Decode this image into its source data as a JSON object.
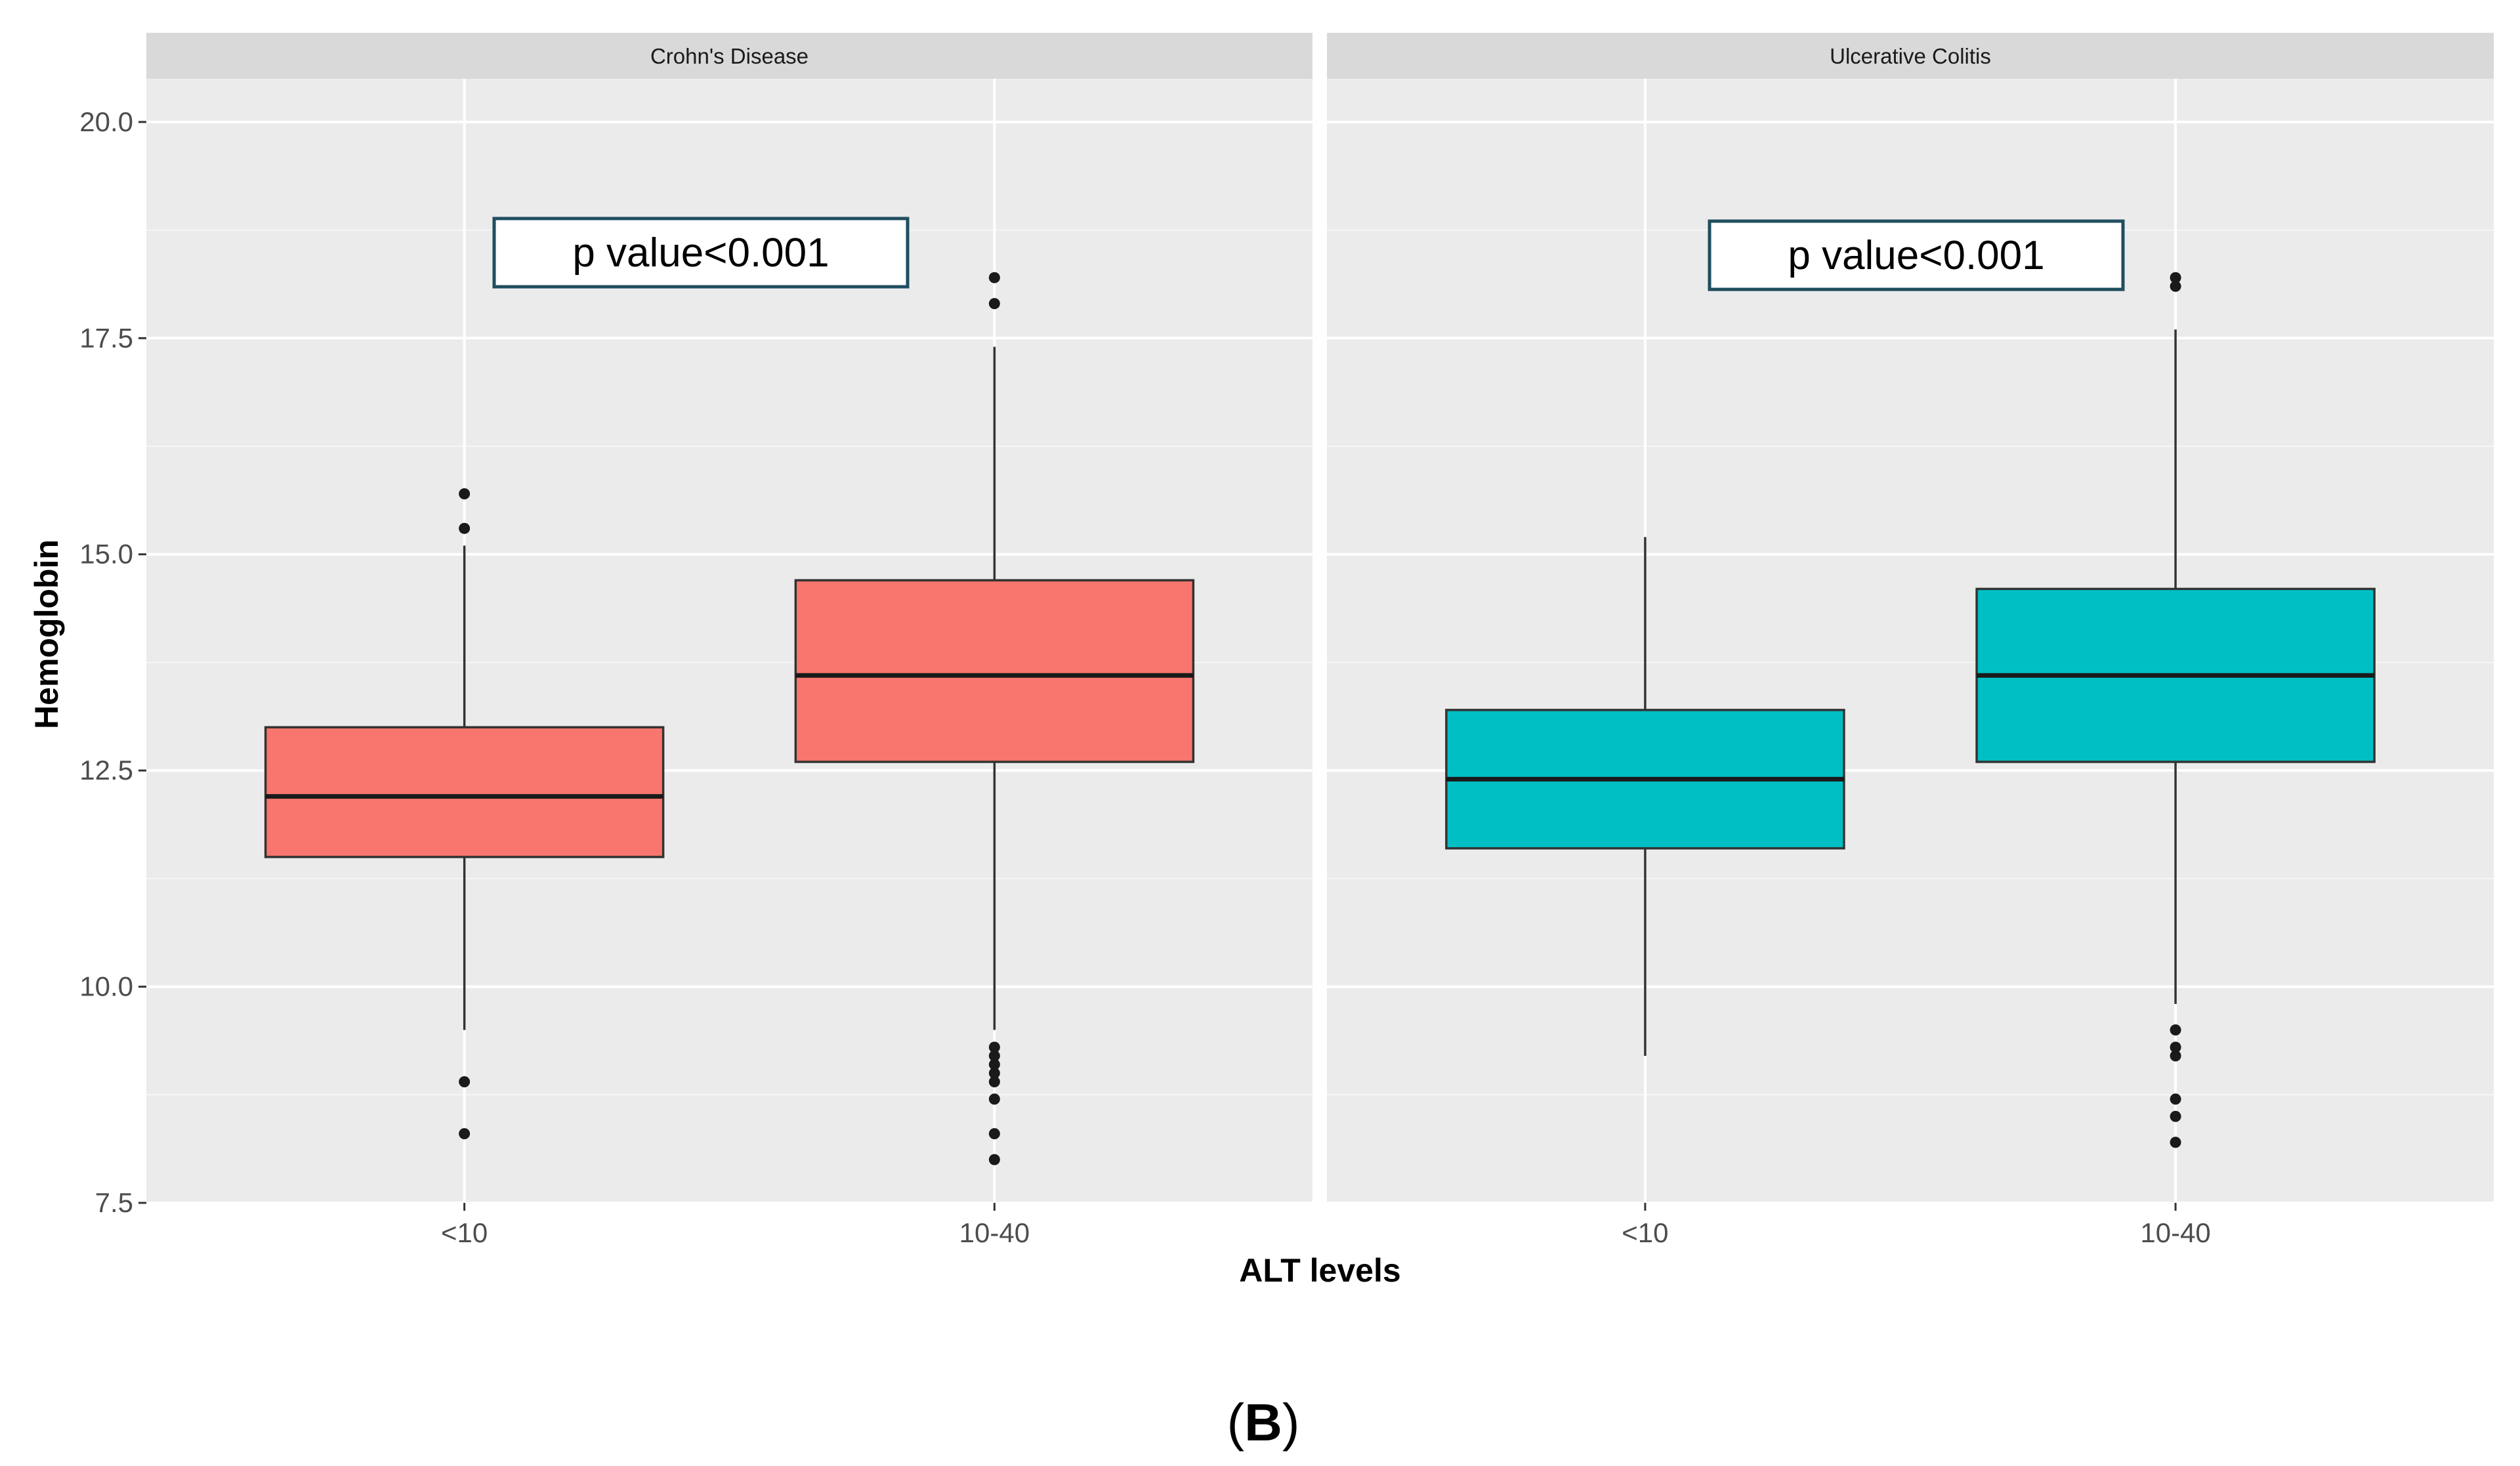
{
  "chart_data": {
    "type": "boxplot",
    "title": "",
    "panel_label": "(B)",
    "panel_label_parts": {
      "open": "(",
      "letter": "B",
      "close": ")"
    },
    "xlabel": "ALT levels",
    "ylabel": "Hemoglobin",
    "ylim": [
      7.5,
      20.5
    ],
    "yticks": [
      7.5,
      10.0,
      12.5,
      15.0,
      17.5,
      20.0
    ],
    "ytick_labels": [
      "7.5",
      "10.0",
      "12.5",
      "15.0",
      "17.5",
      "20.0"
    ],
    "grid": true,
    "categories": [
      "<10",
      "10-40"
    ],
    "facets": [
      {
        "name": "Crohn's Disease",
        "fill": "#F8766D",
        "annotation": "p value<0.001",
        "boxes": [
          {
            "category": "<10",
            "whisker_low": 9.5,
            "q1": 11.5,
            "median": 12.2,
            "q3": 13.0,
            "whisker_high": 15.1,
            "outliers": [
              15.7,
              15.3,
              8.9,
              8.3
            ]
          },
          {
            "category": "10-40",
            "whisker_low": 9.5,
            "q1": 12.6,
            "median": 13.6,
            "q3": 14.7,
            "whisker_high": 17.4,
            "outliers": [
              18.2,
              17.9,
              9.3,
              9.2,
              9.1,
              9.0,
              8.9,
              8.7,
              8.3,
              8.0
            ]
          }
        ]
      },
      {
        "name": "Ulcerative Colitis",
        "fill": "#00BFC4",
        "annotation": "p value<0.001",
        "boxes": [
          {
            "category": "<10",
            "whisker_low": 9.2,
            "q1": 11.6,
            "median": 12.4,
            "q3": 13.2,
            "whisker_high": 15.2,
            "outliers": []
          },
          {
            "category": "10-40",
            "whisker_low": 9.8,
            "q1": 12.6,
            "median": 13.6,
            "q3": 14.6,
            "whisker_high": 17.6,
            "outliers": [
              18.2,
              18.1,
              9.5,
              9.3,
              9.2,
              8.7,
              8.5,
              8.2
            ]
          }
        ]
      }
    ],
    "colors": {
      "panel_bg": "#EBEBEB",
      "strip_bg": "#D9D9D9",
      "grid_major": "#FFFFFF",
      "box_outline": "#333333",
      "annotation_border": "#1F4E5F"
    }
  }
}
